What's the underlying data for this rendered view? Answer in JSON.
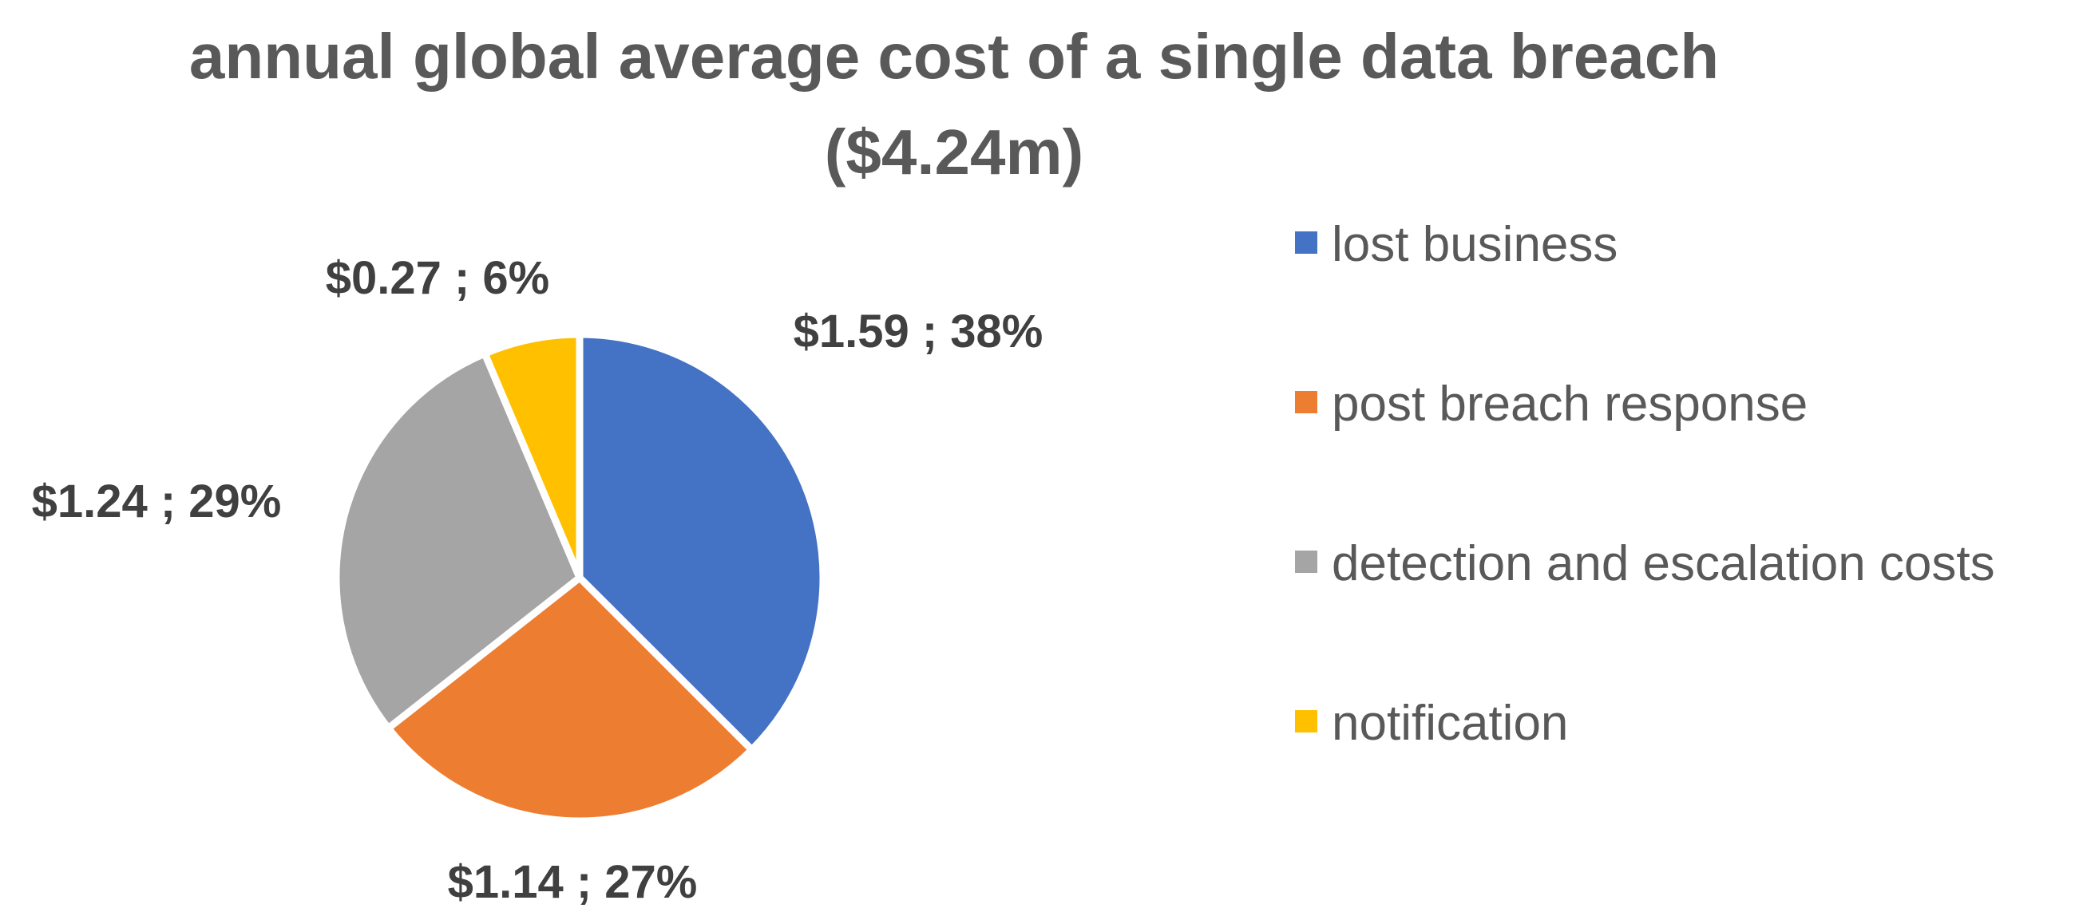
{
  "chart_data": {
    "type": "pie",
    "title": [
      "annual global average cost of a single data breach",
      "($4.24m)"
    ],
    "unit_prefix": "$",
    "categories": [
      "lost business",
      "post breach response",
      "detection and escalation costs",
      "notification"
    ],
    "values": [
      1.59,
      1.14,
      1.24,
      0.27
    ],
    "percents": [
      38,
      27,
      29,
      6
    ],
    "labels": [
      "$1.59 ; 38%",
      "$1.14 ; 27%",
      "$1.24 ; 29%",
      "$0.27 ; 6%"
    ],
    "colors": [
      "#4472C4",
      "#ED7D31",
      "#A5A5A5",
      "#FFC000"
    ],
    "start_angle_deg": 0,
    "direction": "clockwise",
    "legend_position": "right"
  }
}
